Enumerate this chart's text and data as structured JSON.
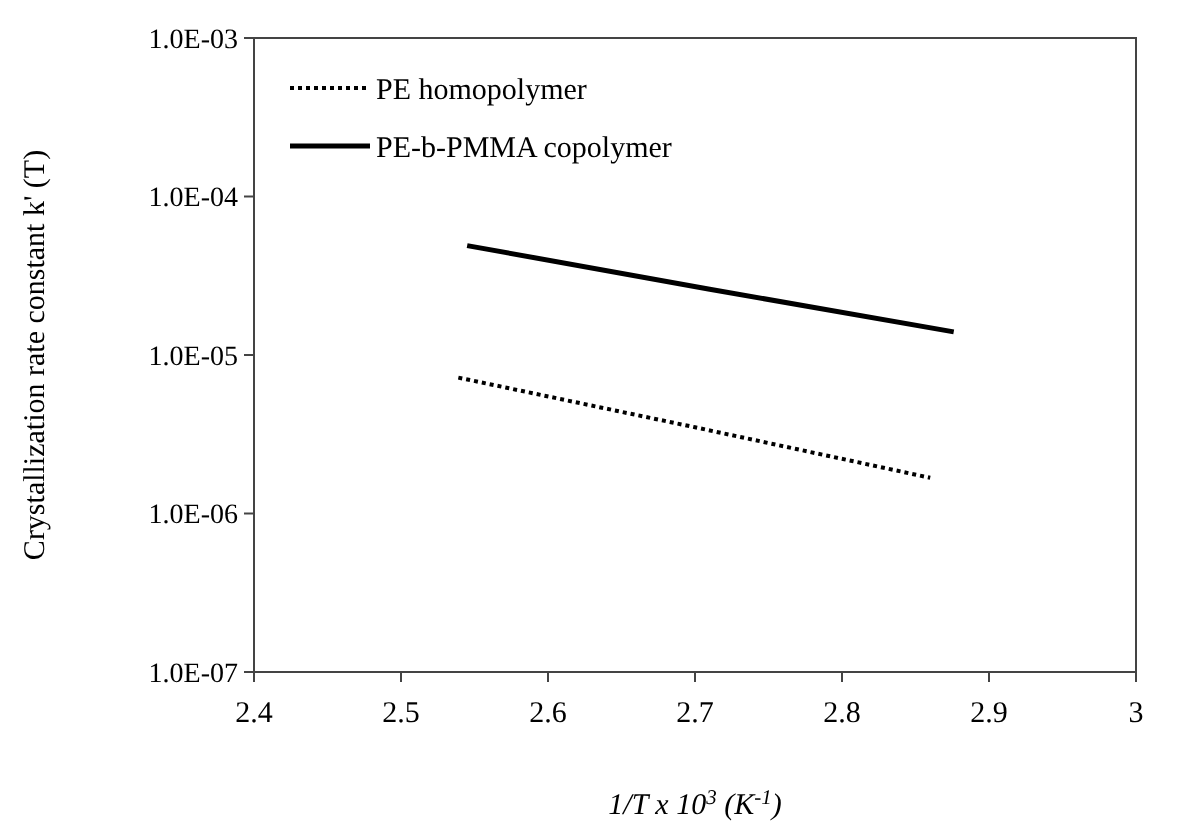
{
  "chart_data": {
    "type": "line",
    "xlabel": "1/T x 10$^{3}$  (K$^{-1}$)",
    "ylabel": "Crystallization rate constant k' (T)",
    "log": "y",
    "xlim": [
      2.4,
      3
    ],
    "xticks": [
      2.4,
      2.5,
      2.6,
      2.7,
      2.8,
      2.9,
      3
    ],
    "ylim": [
      1e-07,
      0.001
    ],
    "yticks": [
      {
        "value": 1e-07,
        "label": "1.0E-07"
      },
      {
        "value": 1e-06,
        "label": "1.0E-06"
      },
      {
        "value": 1e-05,
        "label": "1.0E-05"
      },
      {
        "value": 0.0001,
        "label": "1.0E-04"
      },
      {
        "value": 0.001,
        "label": "1.0E-03"
      }
    ],
    "grid": false,
    "legend": "top left",
    "marker": "none",
    "series": [
      {
        "name": "PE homopolymer",
        "color": "#000000",
        "line_style": "dotted",
        "x": [
          2.539,
          2.7,
          2.86
        ],
        "values": [
          7.2e-06,
          3.5e-06,
          1.68e-06
        ]
      },
      {
        "name": "PE-b-PMMA copolymer",
        "color": "#000000",
        "line_style": "solid",
        "x": [
          2.545,
          2.71,
          2.876
        ],
        "values": [
          4.9e-05,
          2.6e-05,
          1.4e-05
        ]
      }
    ]
  }
}
